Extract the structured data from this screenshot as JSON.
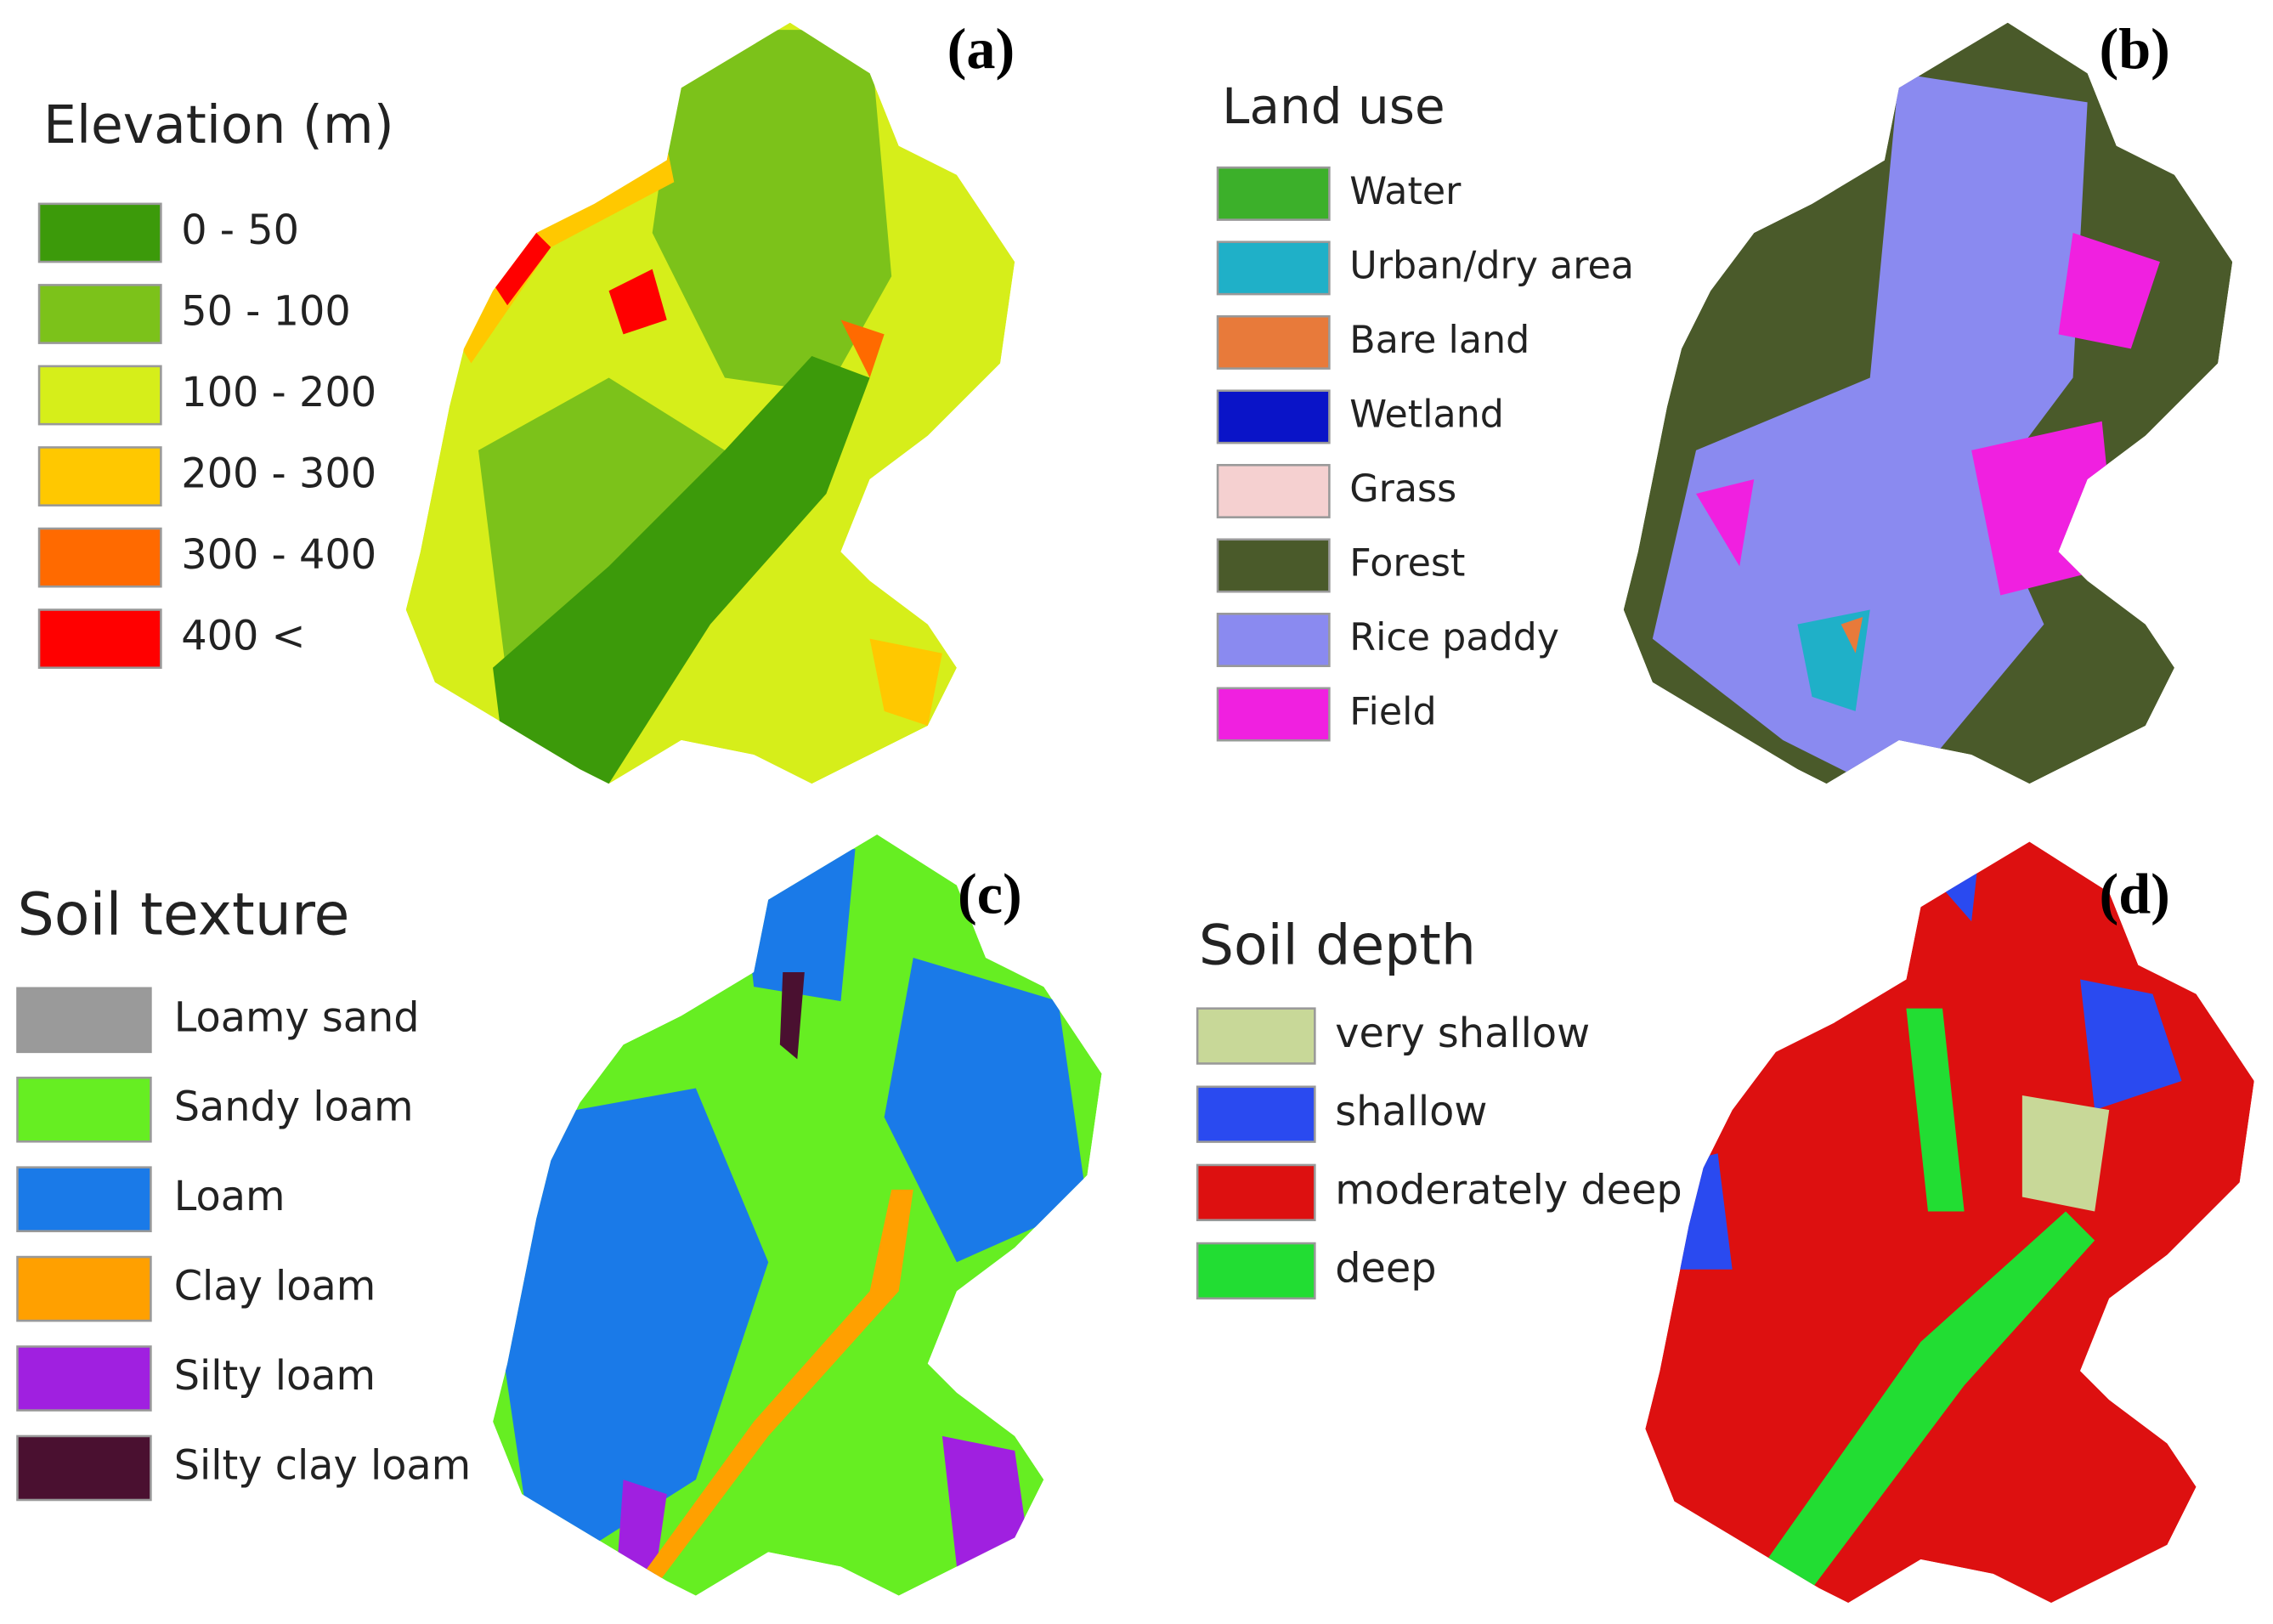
{
  "panels": [
    {
      "label": "(a)",
      "legend_title": "Elevation (m)",
      "items": [
        {
          "label": "0 - 50",
          "color": "#3c9a0a"
        },
        {
          "label": "50 - 100",
          "color": "#7cc21a"
        },
        {
          "label": "100 - 200",
          "color": "#d6ee1a"
        },
        {
          "label": "200 - 300",
          "color": "#ffc800"
        },
        {
          "label": "300 - 400",
          "color": "#ff6a00"
        },
        {
          "label": "400 <",
          "color": "#ff0000"
        }
      ]
    },
    {
      "label": "(b)",
      "legend_title": "Land use",
      "items": [
        {
          "label": "Water",
          "color": "#3cb02a"
        },
        {
          "label": "Urban/dry area",
          "color": "#1fb0c8"
        },
        {
          "label": "Bare land",
          "color": "#e87a3a"
        },
        {
          "label": "Wetland",
          "color": "#0a14c8"
        },
        {
          "label": "Grass",
          "color": "#f5d0d0"
        },
        {
          "label": "Forest",
          "color": "#4a5a2a"
        },
        {
          "label": "Rice paddy",
          "color": "#8a8af0"
        },
        {
          "label": "Field",
          "color": "#f020e0"
        }
      ]
    },
    {
      "label": "(c)",
      "legend_title": "Soil texture",
      "items": [
        {
          "label": "Loamy sand",
          "color": "#9a9a9a"
        },
        {
          "label": "Sandy loam",
          "color": "#66ee22"
        },
        {
          "label": "Loam",
          "color": "#1a7ae8"
        },
        {
          "label": "Clay loam",
          "color": "#ffa000"
        },
        {
          "label": "Silty loam",
          "color": "#a020e0"
        },
        {
          "label": "Silty clay loam",
          "color": "#4a1030"
        }
      ]
    },
    {
      "label": "(d)",
      "legend_title": "Soil depth",
      "items": [
        {
          "label": "very shallow",
          "color": "#c8d898"
        },
        {
          "label": "shallow",
          "color": "#2a4af0"
        },
        {
          "label": "moderately deep",
          "color": "#dd1010"
        },
        {
          "label": "deep",
          "color": "#22dd33"
        }
      ]
    }
  ]
}
